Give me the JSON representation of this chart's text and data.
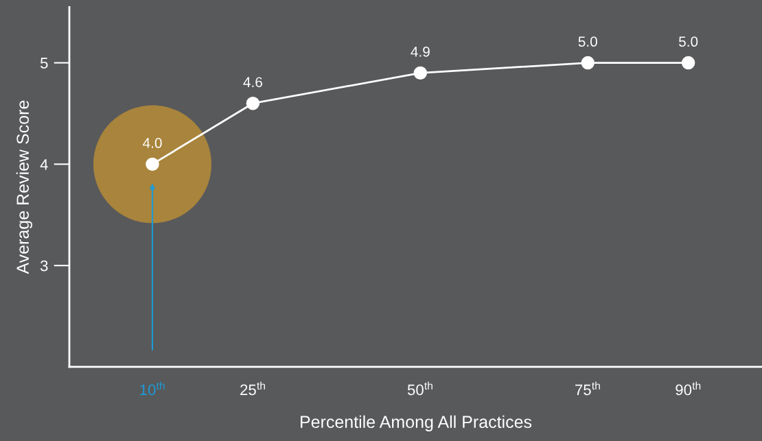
{
  "chart_data": {
    "type": "line",
    "xlabel": "Percentile Among All Practices",
    "ylabel": "Average Review Score",
    "x": [
      10,
      25,
      50,
      75,
      90
    ],
    "series": [
      {
        "color": "#ffffff",
        "values": [
          4.0,
          4.6,
          4.9,
          5.0,
          5.0
        ],
        "value_labels": [
          "4.0",
          "4.6",
          "4.9",
          "5.0",
          "5.0"
        ]
      }
    ],
    "xlim": [
      -2.4,
      101
    ],
    "ylim": [
      2.0,
      5.55
    ],
    "xticks": [
      {
        "value": 10,
        "label": "10$^{th}$"
      },
      {
        "value": 25,
        "label": "25$^{th}$"
      },
      {
        "value": 50,
        "label": "50$^{th}$"
      },
      {
        "value": 75,
        "label": "75$^{th}$"
      },
      {
        "value": 90,
        "label": "90$^{th}$"
      }
    ],
    "yticks": [
      3,
      4,
      5
    ],
    "marker": "circle",
    "line_style": "solid",
    "grid": false,
    "legend": false
  }
}
